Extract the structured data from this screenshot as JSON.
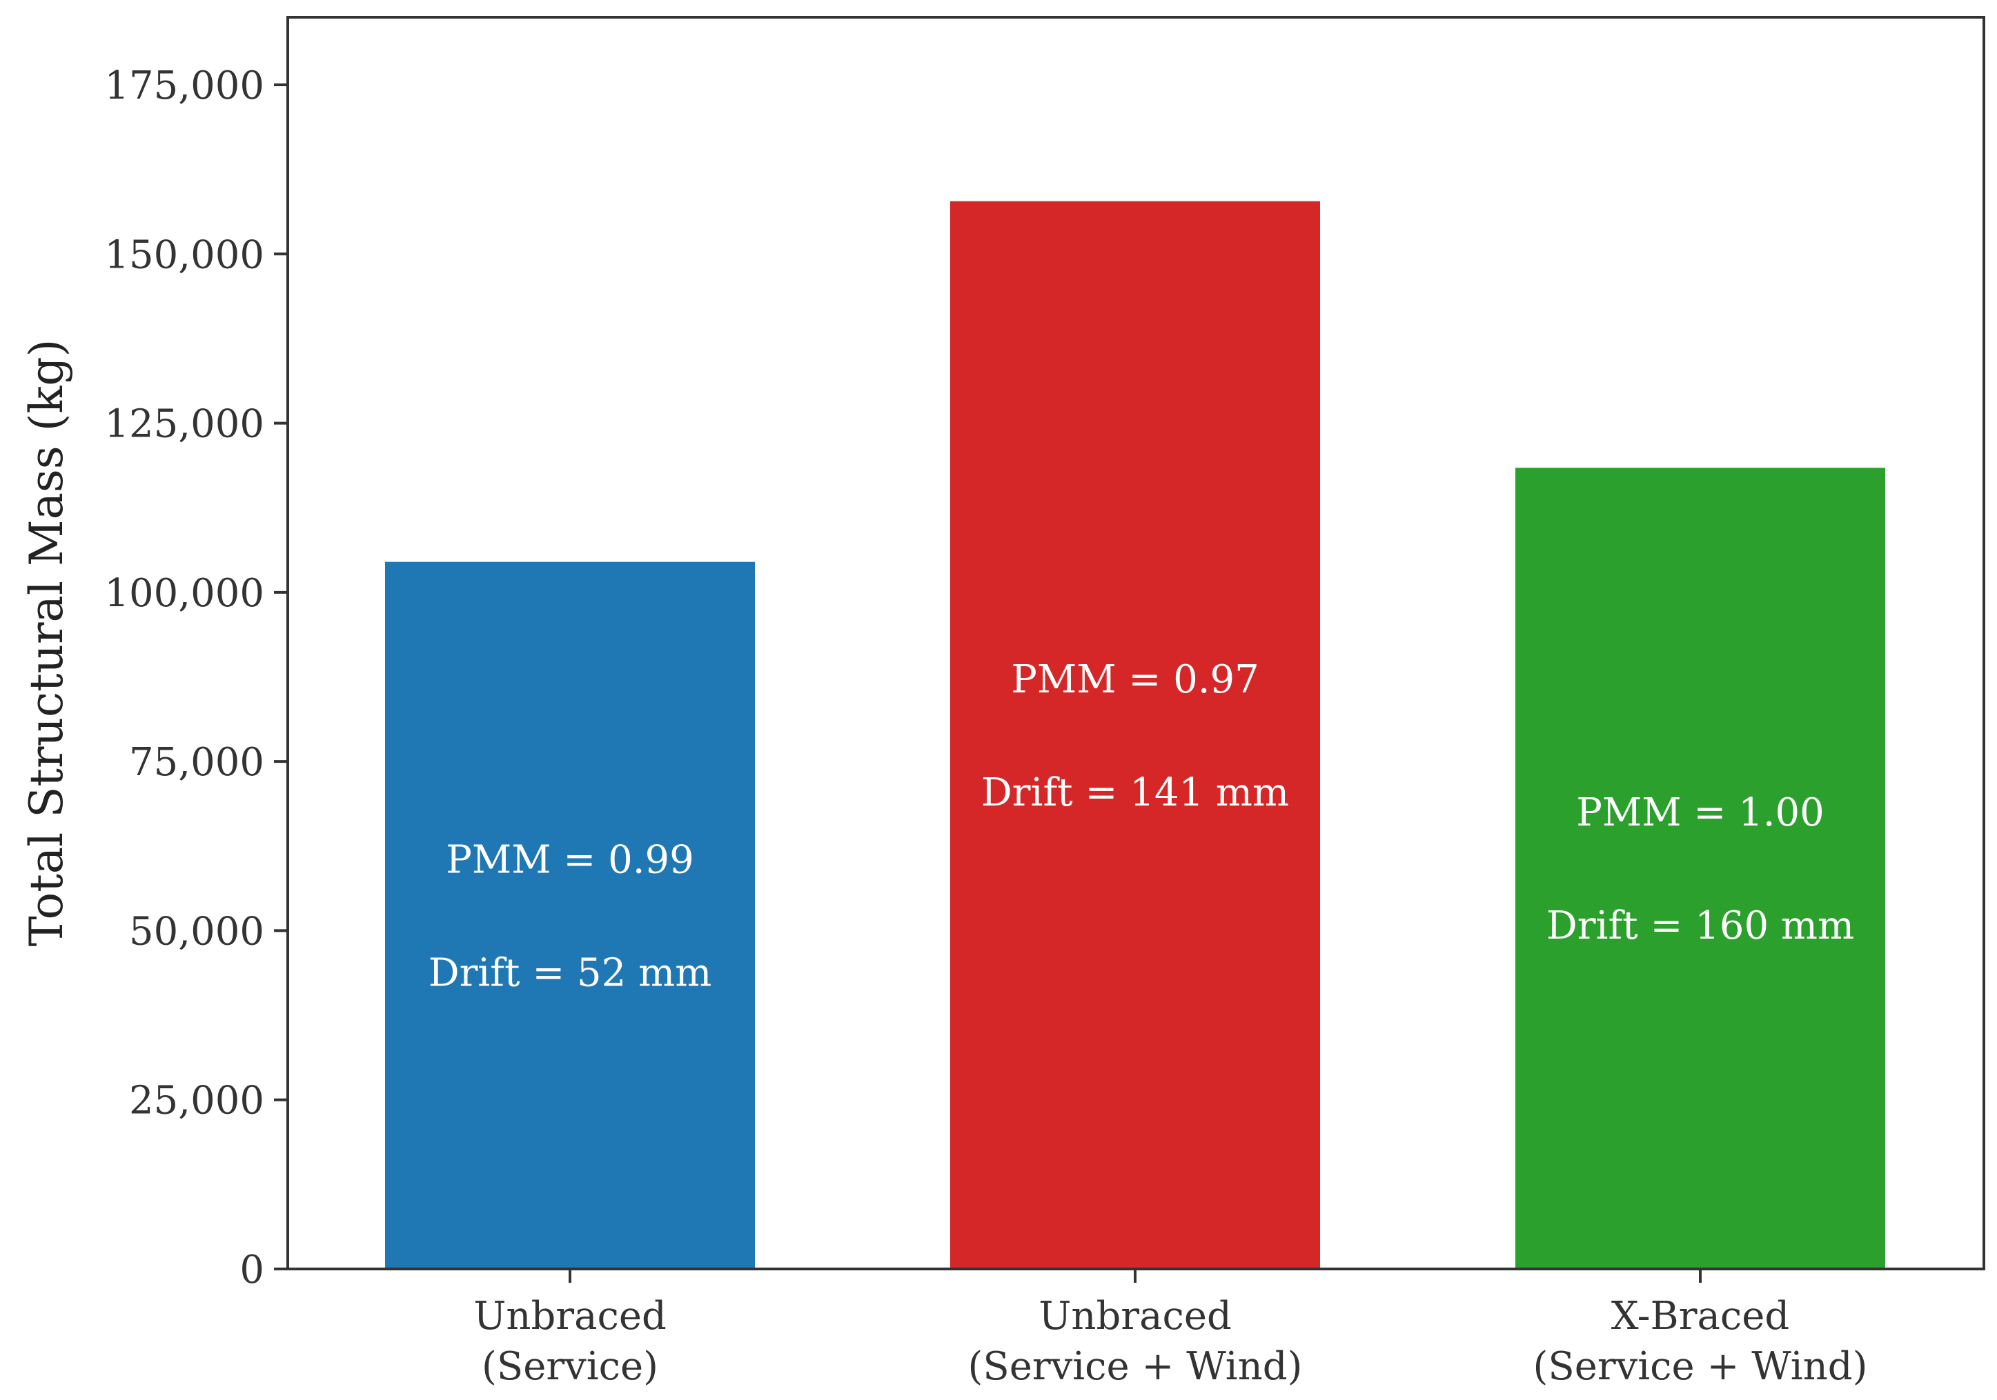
{
  "chart_data": {
    "type": "bar",
    "title": "",
    "xlabel": "",
    "ylabel": "Total Structural Mass (kg)",
    "ylim": [
      0,
      186000
    ],
    "yticks": [
      0,
      25000,
      50000,
      75000,
      100000,
      125000,
      150000,
      175000
    ],
    "ytick_labels": [
      "0",
      "25,000",
      "50,000",
      "75,000",
      "100,000",
      "125,000",
      "150,000",
      "175,000"
    ],
    "grid": false,
    "categories": [
      [
        "Unbraced",
        "(Service)"
      ],
      [
        "Unbraced",
        "(Service + Wind)"
      ],
      [
        "X-Braced",
        "(Service + Wind)"
      ]
    ],
    "values": [
      104500,
      157800,
      118400
    ],
    "colors": [
      "#1f77b4",
      "#d62728",
      "#2ca02c"
    ],
    "annotations": [
      {
        "pmm": "PMM = 0.99",
        "drift": "Drift = 52 mm"
      },
      {
        "pmm": "PMM = 0.97",
        "drift": "Drift = 141 mm"
      },
      {
        "pmm": "PMM = 1.00",
        "drift": "Drift = 160 mm"
      }
    ]
  }
}
